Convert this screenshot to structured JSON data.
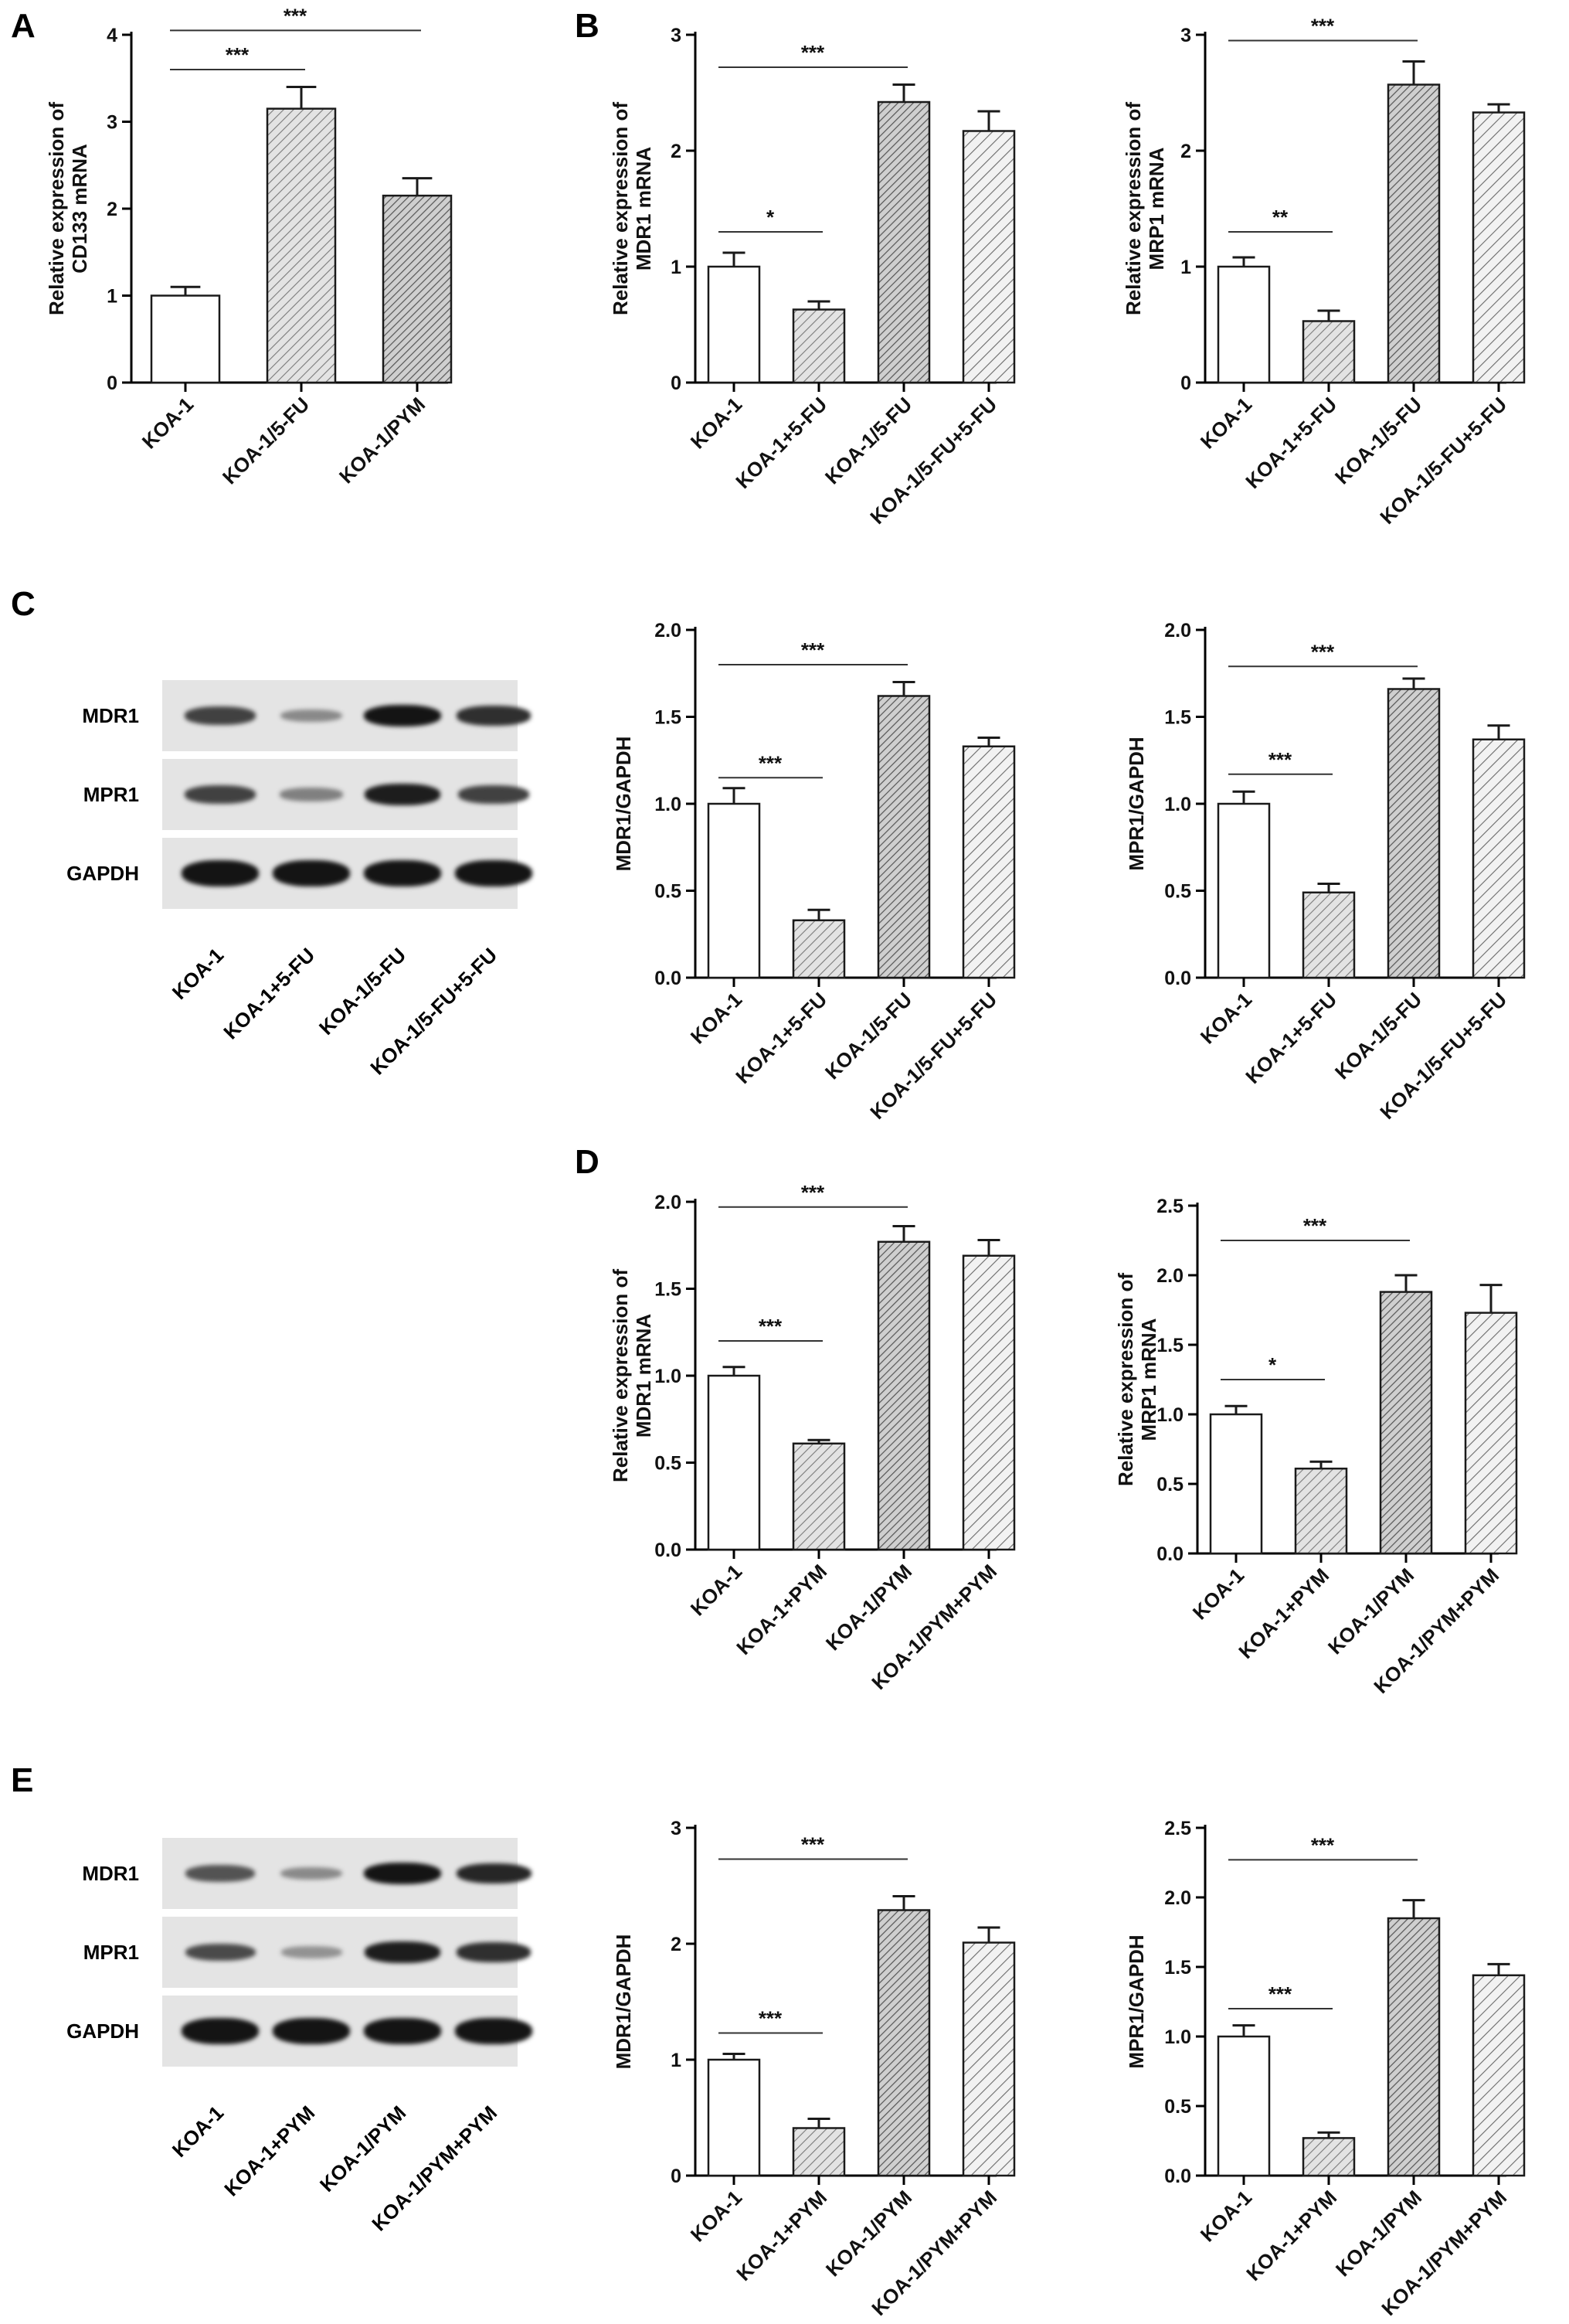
{
  "panel_letters": {
    "A": "A",
    "B": "B",
    "C": "C",
    "D": "D",
    "E": "E"
  },
  "blots": {
    "C": {
      "rows": [
        "MDR1",
        "MPR1",
        "GAPDH"
      ],
      "lanes": [
        "KOA-1",
        "KOA-1+5-FU",
        "KOA-1/5-FU",
        "KOA-1/5-FU+5-FU"
      ],
      "intensity": [
        [
          0.75,
          0.35,
          1.0,
          0.85
        ],
        [
          0.75,
          0.4,
          0.95,
          0.75
        ],
        [
          1.0,
          1.0,
          1.0,
          1.0
        ]
      ]
    },
    "E": {
      "rows": [
        "MDR1",
        "MPR1",
        "GAPDH"
      ],
      "lanes": [
        "KOA-1",
        "KOA-1+PYM",
        "KOA-1/PYM",
        "KOA-1/PYM+PYM"
      ],
      "intensity": [
        [
          0.65,
          0.35,
          1.0,
          0.9
        ],
        [
          0.7,
          0.3,
          0.95,
          0.85
        ],
        [
          1.0,
          1.0,
          1.0,
          1.0
        ]
      ]
    }
  },
  "colors": {
    "axis": "#000000",
    "bar_edge": "#1a1a1a",
    "hatch": "#6e6e6e",
    "hatch_bg": "#d9d9d9",
    "white": "#ffffff"
  },
  "chart_data": [
    {
      "id": "A",
      "type": "bar",
      "ylabel": [
        "Relative expression of",
        "CD133 mRNA"
      ],
      "categories": [
        "KOA-1",
        "KOA-1/5-FU",
        "KOA-1/PYM"
      ],
      "values": [
        1.0,
        3.15,
        2.15
      ],
      "errors": [
        0.1,
        0.25,
        0.2
      ],
      "styles": [
        "white",
        "hatch-light",
        "hatch-dense"
      ],
      "ylim": [
        0,
        4
      ],
      "yticks": [
        "0",
        "1",
        "2",
        "3",
        "4"
      ],
      "significance": [
        {
          "from": 0,
          "to": 1,
          "label": "***",
          "y": 3.6
        },
        {
          "from": 0,
          "to": 2,
          "label": "***",
          "y": 4.05
        }
      ]
    },
    {
      "id": "B1",
      "type": "bar",
      "ylabel": [
        "Relative expression of",
        "MDR1 mRNA"
      ],
      "categories": [
        "KOA-1",
        "KOA-1+5-FU",
        "KOA-1/5-FU",
        "KOA-1/5-FU+5-FU"
      ],
      "values": [
        1.0,
        0.63,
        2.42,
        2.17
      ],
      "errors": [
        0.12,
        0.07,
        0.15,
        0.17
      ],
      "styles": [
        "white",
        "hatch-light",
        "hatch-dense",
        "hatch-sparse"
      ],
      "ylim": [
        0,
        3
      ],
      "yticks": [
        "0",
        "1",
        "2",
        "3"
      ],
      "significance": [
        {
          "from": 0,
          "to": 1,
          "label": "*",
          "y": 1.3
        },
        {
          "from": 0,
          "to": 2,
          "label": "***",
          "y": 2.72
        }
      ]
    },
    {
      "id": "B2",
      "type": "bar",
      "ylabel": [
        "Relative expression of",
        "MRP1 mRNA"
      ],
      "categories": [
        "KOA-1",
        "KOA-1+5-FU",
        "KOA-1/5-FU",
        "KOA-1/5-FU+5-FU"
      ],
      "values": [
        1.0,
        0.53,
        2.57,
        2.33
      ],
      "errors": [
        0.08,
        0.09,
        0.2,
        0.07
      ],
      "styles": [
        "white",
        "hatch-light",
        "hatch-dense",
        "hatch-sparse"
      ],
      "ylim": [
        0,
        3
      ],
      "yticks": [
        "0",
        "1",
        "2",
        "3"
      ],
      "significance": [
        {
          "from": 0,
          "to": 1,
          "label": "**",
          "y": 1.3
        },
        {
          "from": 0,
          "to": 2,
          "label": "***",
          "y": 2.95
        }
      ]
    },
    {
      "id": "C1",
      "type": "bar",
      "ylabel": [
        "MDR1/GAPDH"
      ],
      "categories": [
        "KOA-1",
        "KOA-1+5-FU",
        "KOA-1/5-FU",
        "KOA-1/5-FU+5-FU"
      ],
      "values": [
        1.0,
        0.33,
        1.62,
        1.33
      ],
      "errors": [
        0.09,
        0.06,
        0.08,
        0.05
      ],
      "styles": [
        "white",
        "hatch-light",
        "hatch-dense",
        "hatch-sparse"
      ],
      "ylim": [
        0,
        2
      ],
      "yticks": [
        "0.0",
        "0.5",
        "1.0",
        "1.5",
        "2.0"
      ],
      "significance": [
        {
          "from": 0,
          "to": 1,
          "label": "***",
          "y": 1.15
        },
        {
          "from": 0,
          "to": 2,
          "label": "***",
          "y": 1.8
        }
      ]
    },
    {
      "id": "C2",
      "type": "bar",
      "ylabel": [
        "MPR1/GAPDH"
      ],
      "categories": [
        "KOA-1",
        "KOA-1+5-FU",
        "KOA-1/5-FU",
        "KOA-1/5-FU+5-FU"
      ],
      "values": [
        1.0,
        0.49,
        1.66,
        1.37
      ],
      "errors": [
        0.07,
        0.05,
        0.06,
        0.08
      ],
      "styles": [
        "white",
        "hatch-light",
        "hatch-dense",
        "hatch-sparse"
      ],
      "ylim": [
        0,
        2
      ],
      "yticks": [
        "0.0",
        "0.5",
        "1.0",
        "1.5",
        "2.0"
      ],
      "significance": [
        {
          "from": 0,
          "to": 1,
          "label": "***",
          "y": 1.17
        },
        {
          "from": 0,
          "to": 2,
          "label": "***",
          "y": 1.79
        }
      ]
    },
    {
      "id": "D1",
      "type": "bar",
      "ylabel": [
        "Relative expression of",
        "MDR1 mRNA"
      ],
      "categories": [
        "KOA-1",
        "KOA-1+PYM",
        "KOA-1/PYM",
        "KOA-1/PYM+PYM"
      ],
      "values": [
        1.0,
        0.61,
        1.77,
        1.69
      ],
      "errors": [
        0.05,
        0.02,
        0.09,
        0.09
      ],
      "styles": [
        "white",
        "hatch-light",
        "hatch-dense",
        "hatch-sparse"
      ],
      "ylim": [
        0,
        2
      ],
      "yticks": [
        "0.0",
        "0.5",
        "1.0",
        "1.5",
        "2.0"
      ],
      "significance": [
        {
          "from": 0,
          "to": 1,
          "label": "***",
          "y": 1.2
        },
        {
          "from": 0,
          "to": 2,
          "label": "***",
          "y": 1.97
        }
      ]
    },
    {
      "id": "D2",
      "type": "bar",
      "ylabel": [
        "Relative expression of",
        "MRP1 mRNA"
      ],
      "categories": [
        "KOA-1",
        "KOA-1+PYM",
        "KOA-1/PYM",
        "KOA-1/PYM+PYM"
      ],
      "values": [
        1.0,
        0.61,
        1.88,
        1.73
      ],
      "errors": [
        0.06,
        0.05,
        0.12,
        0.2
      ],
      "styles": [
        "white",
        "hatch-light",
        "hatch-dense",
        "hatch-sparse"
      ],
      "ylim": [
        0,
        2.5
      ],
      "yticks": [
        "0.0",
        "0.5",
        "1.0",
        "1.5",
        "2.0",
        "2.5"
      ],
      "significance": [
        {
          "from": 0,
          "to": 1,
          "label": "*",
          "y": 1.25
        },
        {
          "from": 0,
          "to": 2,
          "label": "***",
          "y": 2.25
        }
      ]
    },
    {
      "id": "E1",
      "type": "bar",
      "ylabel": [
        "MDR1/GAPDH"
      ],
      "categories": [
        "KOA-1",
        "KOA-1+PYM",
        "KOA-1/PYM",
        "KOA-1/PYM+PYM"
      ],
      "values": [
        1.0,
        0.41,
        2.29,
        2.01
      ],
      "errors": [
        0.05,
        0.08,
        0.12,
        0.13
      ],
      "styles": [
        "white",
        "hatch-light",
        "hatch-dense",
        "hatch-sparse"
      ],
      "ylim": [
        0,
        3
      ],
      "yticks": [
        "0",
        "1",
        "2",
        "3"
      ],
      "significance": [
        {
          "from": 0,
          "to": 1,
          "label": "***",
          "y": 1.23
        },
        {
          "from": 0,
          "to": 2,
          "label": "***",
          "y": 2.73
        }
      ]
    },
    {
      "id": "E2",
      "type": "bar",
      "ylabel": [
        "MPR1/GAPDH"
      ],
      "categories": [
        "KOA-1",
        "KOA-1+PYM",
        "KOA-1/PYM",
        "KOA-1/PYM+PYM"
      ],
      "values": [
        1.0,
        0.27,
        1.85,
        1.44
      ],
      "errors": [
        0.08,
        0.04,
        0.13,
        0.08
      ],
      "styles": [
        "white",
        "hatch-light",
        "hatch-dense",
        "hatch-sparse"
      ],
      "ylim": [
        0,
        2.5
      ],
      "yticks": [
        "0.0",
        "0.5",
        "1.0",
        "1.5",
        "2.0",
        "2.5"
      ],
      "significance": [
        {
          "from": 0,
          "to": 1,
          "label": "***",
          "y": 1.2
        },
        {
          "from": 0,
          "to": 2,
          "label": "***",
          "y": 2.27
        }
      ]
    }
  ]
}
